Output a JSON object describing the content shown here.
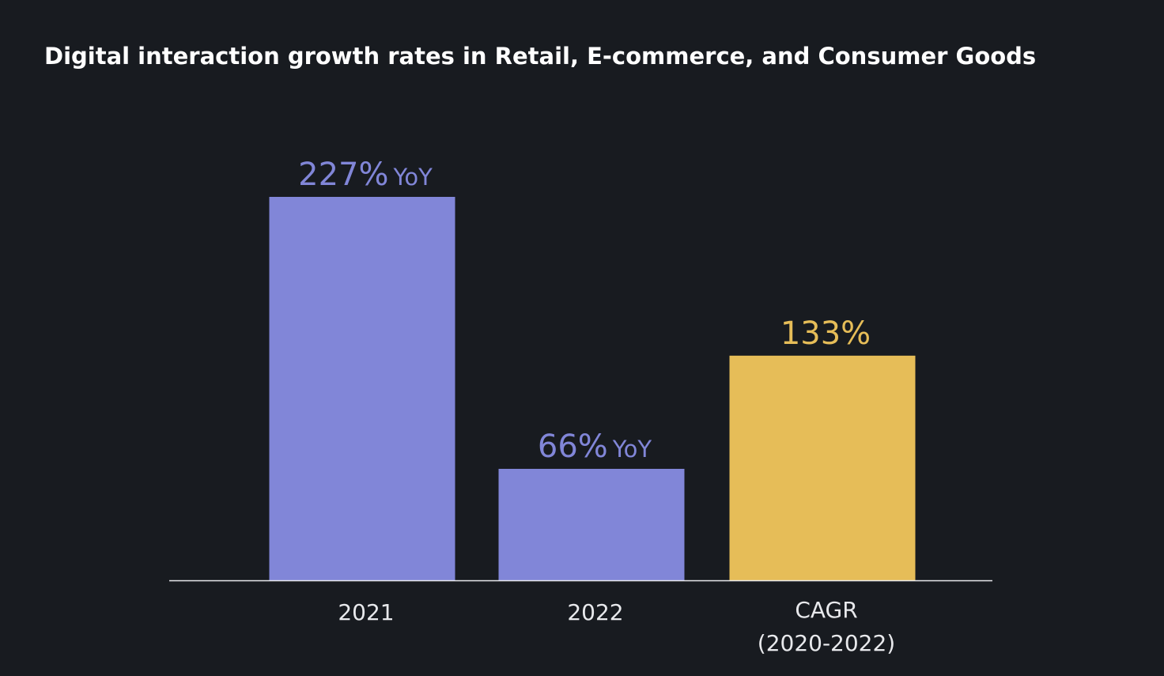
{
  "colors": {
    "background": "#181b20",
    "primary_bar": "#8186d8",
    "highlight_bar": "#e6bd58",
    "text": "#e8e9ec",
    "baseline": "#e8e9ec"
  },
  "chart_data": {
    "type": "bar",
    "title": "Digital interaction growth rates in Retail, E-commerce, and Consumer Goods",
    "xlabel": "",
    "ylabel": "",
    "grid": false,
    "legend": "none",
    "ylim": [
      0,
      227
    ],
    "categories": [
      "2021",
      "2022",
      "CAGR\n(2020-2022)"
    ],
    "values": [
      227,
      66,
      133
    ],
    "value_labels": [
      {
        "main": "227%",
        "suffix": "YoY"
      },
      {
        "main": "66%",
        "suffix": "YoY"
      },
      {
        "main": "133%",
        "suffix": ""
      }
    ],
    "bar_colors": [
      "#8186d8",
      "#8186d8",
      "#e6bd58"
    ]
  }
}
